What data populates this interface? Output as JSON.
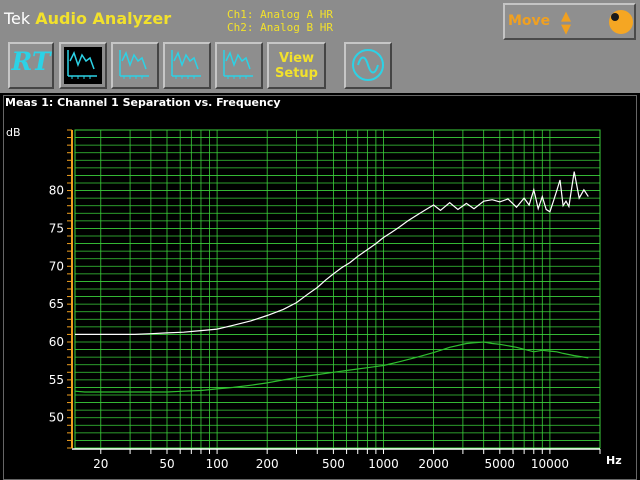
{
  "header": {
    "brand": "Tek",
    "app_title": "Audio Analyzer",
    "channel_1": "Ch1: Analog A HR",
    "channel_2": "Ch2: Analog B HR"
  },
  "move_control": {
    "label": "Move",
    "arrows_icon": "up-down-arrows-icon",
    "knob_icon": "knob-icon"
  },
  "toolbar": {
    "rt_label": "RT",
    "view_setup_label": "View\nSetup",
    "buttons": [
      {
        "name": "rt-button",
        "icon": "rt-icon"
      },
      {
        "name": "measurement-1-button",
        "icon": "graph-icon",
        "active": true
      },
      {
        "name": "measurement-2-button",
        "icon": "graph-icon"
      },
      {
        "name": "measurement-3-button",
        "icon": "graph-icon"
      },
      {
        "name": "measurement-4-button",
        "icon": "graph-icon"
      },
      {
        "name": "view-setup-button"
      },
      {
        "name": "generator-button",
        "icon": "sine-wave-icon"
      }
    ],
    "colors": {
      "icon": "#2cd2e6",
      "label": "#f2e12c",
      "button": "#8e8e8e"
    }
  },
  "chart_data": {
    "type": "line",
    "title": "Meas 1: Channel 1 Separation vs. Frequency",
    "xlabel": "Hz",
    "ylabel": "dB",
    "x_scale": "log",
    "xlim": [
      14,
      20000
    ],
    "ylim": [
      46,
      88
    ],
    "grid": true,
    "x_ticks": [
      20,
      50,
      100,
      200,
      500,
      1000,
      2000,
      5000,
      10000
    ],
    "y_ticks": [
      50,
      55,
      60,
      65,
      70,
      75,
      80
    ],
    "colors": {
      "grid": "#3bd13b",
      "series_1": "#ffffff",
      "series_2": "#2fbf2f",
      "axis": "#f0a020"
    },
    "series": [
      {
        "color": "#ffffff",
        "x": [
          14,
          16,
          20,
          25,
          32,
          40,
          50,
          63,
          80,
          100,
          125,
          160,
          200,
          250,
          300,
          350,
          400,
          450,
          500,
          560,
          630,
          700,
          800,
          900,
          1000,
          1120,
          1250,
          1400,
          1600,
          1800,
          2000,
          2200,
          2500,
          2800,
          3150,
          3500,
          4000,
          4500,
          5000,
          5600,
          6300,
          7000,
          7500,
          8000,
          8500,
          9000,
          9500,
          10000,
          10500,
          11000,
          11500,
          12000,
          12500,
          13000,
          14000,
          15000,
          16000,
          17000
        ],
        "y": [
          61,
          61,
          61,
          61,
          61,
          61.1,
          61.2,
          61.3,
          61.5,
          61.7,
          62.2,
          62.8,
          63.5,
          64.3,
          65.2,
          66.3,
          67.2,
          68.2,
          69,
          69.8,
          70.5,
          71.3,
          72.2,
          73,
          73.8,
          74.5,
          75.2,
          76,
          76.8,
          77.5,
          78.1,
          77.4,
          78.4,
          77.5,
          78.3,
          77.6,
          78.6,
          78.8,
          78.5,
          78.9,
          77.8,
          79.0,
          78.1,
          80.1,
          77.6,
          79.2,
          77.5,
          77.2,
          78.6,
          80.0,
          81.4,
          78.0,
          78.6,
          77.9,
          82.5,
          79.0,
          80.1,
          79.2
        ]
      },
      {
        "color": "#2fbf2f",
        "x": [
          14,
          16,
          20,
          25,
          32,
          40,
          50,
          63,
          80,
          100,
          125,
          160,
          200,
          250,
          300,
          400,
          500,
          630,
          800,
          1000,
          1250,
          1600,
          2000,
          2500,
          3150,
          3500,
          4000,
          4500,
          5000,
          6300,
          8000,
          9000,
          10000,
          11000,
          12000,
          14000,
          17000
        ],
        "y": [
          53.5,
          53.4,
          53.4,
          53.4,
          53.4,
          53.4,
          53.4,
          53.5,
          53.6,
          53.8,
          54.0,
          54.3,
          54.6,
          55.0,
          55.3,
          55.7,
          56.0,
          56.3,
          56.6,
          56.9,
          57.4,
          58.0,
          58.6,
          59.3,
          59.8,
          59.9,
          60.0,
          59.8,
          59.7,
          59.3,
          58.7,
          58.9,
          58.8,
          58.7,
          58.5,
          58.2,
          57.9
        ]
      }
    ]
  }
}
